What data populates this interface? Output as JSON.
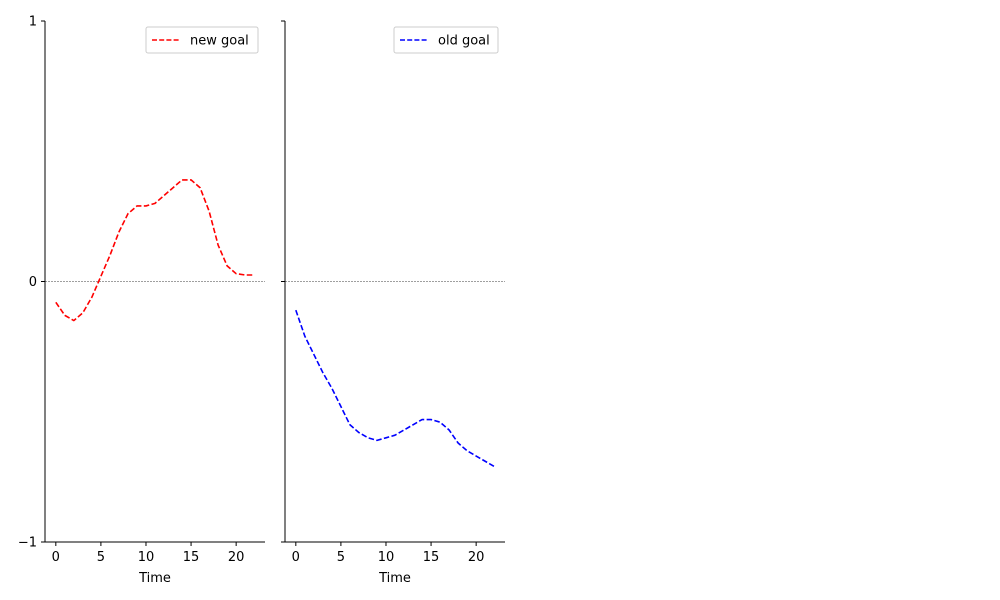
{
  "chart_data": [
    {
      "type": "line",
      "xlabel": "Time",
      "ylabel": "",
      "title": "",
      "xlim": [
        -1.2,
        23.2
      ],
      "ylim": [
        -1,
        1
      ],
      "xticks": [
        0,
        5,
        10,
        15,
        20
      ],
      "yticks": [
        1,
        0,
        -1
      ],
      "ytick_labels": [
        "1",
        "0",
        "−1"
      ],
      "zero_line": true,
      "legend_placement": "top-right",
      "series": [
        {
          "name": "new goal",
          "color": "#ff0000",
          "style": "dashed",
          "x": [
            0,
            1,
            2,
            3,
            4,
            5,
            6,
            7,
            8,
            9,
            10,
            11,
            12,
            13,
            14,
            15,
            16,
            17,
            18,
            19,
            20,
            21,
            22
          ],
          "y": [
            -0.08,
            -0.13,
            -0.15,
            -0.12,
            -0.06,
            0.02,
            0.1,
            0.19,
            0.26,
            0.29,
            0.29,
            0.3,
            0.33,
            0.36,
            0.39,
            0.39,
            0.36,
            0.27,
            0.14,
            0.06,
            0.03,
            0.025,
            0.025
          ]
        }
      ]
    },
    {
      "type": "line",
      "xlabel": "Time",
      "ylabel": "",
      "title": "",
      "xlim": [
        -1.2,
        23.2
      ],
      "ylim": [
        -1,
        1
      ],
      "xticks": [
        0,
        5,
        10,
        15,
        20
      ],
      "yticks": [
        1,
        0,
        -1
      ],
      "zero_line": true,
      "legend_placement": "top-right",
      "series": [
        {
          "name": "old goal",
          "color": "#0000ff",
          "style": "dashed",
          "x": [
            0,
            1,
            2,
            3,
            4,
            5,
            6,
            7,
            8,
            9,
            10,
            11,
            12,
            13,
            14,
            15,
            16,
            17,
            18,
            19,
            20,
            21,
            22
          ],
          "y": [
            -0.11,
            -0.21,
            -0.28,
            -0.35,
            -0.41,
            -0.48,
            -0.55,
            -0.58,
            -0.6,
            -0.61,
            -0.6,
            -0.59,
            -0.57,
            -0.55,
            -0.53,
            -0.53,
            -0.54,
            -0.57,
            -0.62,
            -0.65,
            -0.67,
            -0.69,
            -0.71
          ]
        }
      ]
    }
  ]
}
